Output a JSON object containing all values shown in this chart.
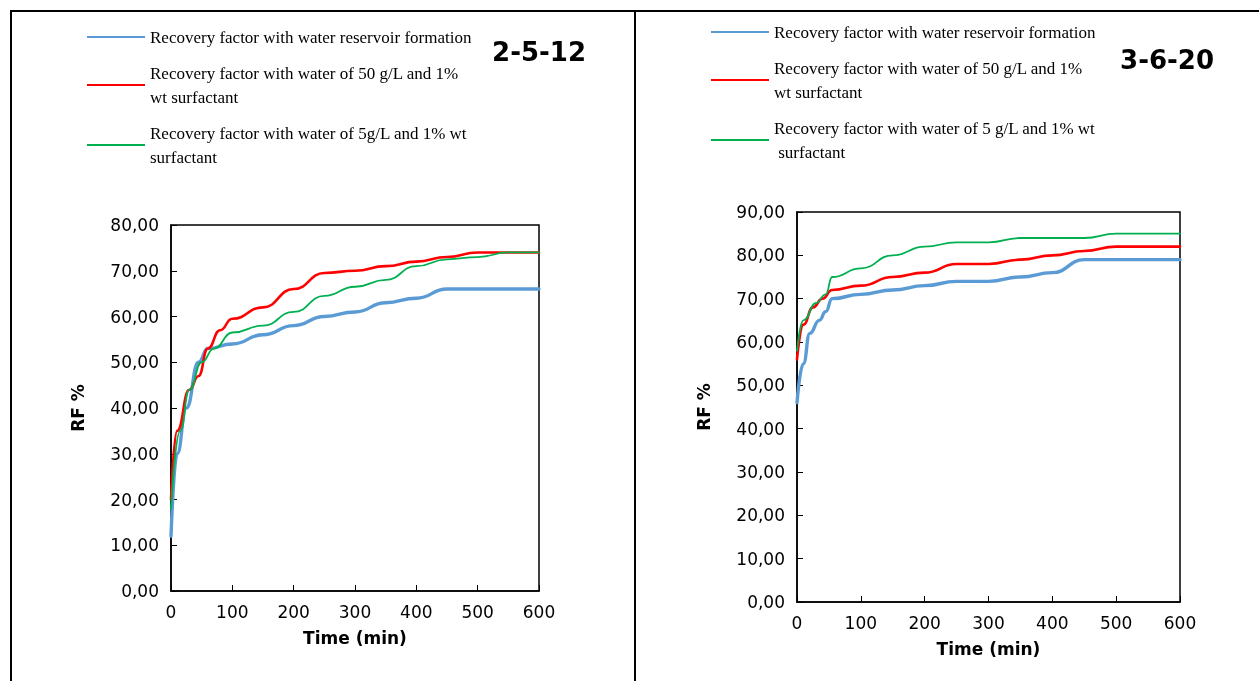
{
  "chart_data": [
    {
      "type": "line",
      "title": "2-5-12",
      "xlabel": "Time (min)",
      "ylabel": "RF %",
      "legend": "top",
      "grid": false,
      "line_style": "solid",
      "marker": "none",
      "xlim": [
        0,
        600
      ],
      "xticks": [
        0,
        100,
        200,
        300,
        400,
        500,
        600
      ],
      "ylim": [
        0,
        80
      ],
      "yticks": [
        {
          "value": 0,
          "label": "0,00"
        },
        {
          "value": 10,
          "label": "10,00"
        },
        {
          "value": 20,
          "label": "20,00"
        },
        {
          "value": 30,
          "label": "30,00"
        },
        {
          "value": 40,
          "label": "40,00"
        },
        {
          "value": 50,
          "label": "50,00"
        },
        {
          "value": 60,
          "label": "60,00"
        },
        {
          "value": 70,
          "label": "70,00"
        },
        {
          "value": 80,
          "label": "80,00"
        }
      ],
      "series": [
        {
          "name": "Recovery factor with water reservoir formation",
          "color": "#5b9bd5",
          "x": [
            0,
            10,
            25,
            45,
            60,
            100,
            150,
            200,
            250,
            300,
            350,
            400,
            450,
            500,
            600
          ],
          "values": [
            12,
            30,
            40,
            50,
            53,
            54,
            56,
            58,
            60,
            61,
            63,
            64,
            66,
            66,
            66
          ]
        },
        {
          "name": "Recovery factor with water of 50 g/L and 1% wt surfactant",
          "color": "#ff0000",
          "x": [
            0,
            10,
            30,
            45,
            60,
            80,
            100,
            150,
            200,
            250,
            300,
            350,
            400,
            450,
            500,
            550,
            600
          ],
          "values": [
            20,
            35,
            44,
            47,
            53,
            57,
            59.5,
            62,
            66,
            69.5,
            70,
            71,
            72,
            73,
            74,
            74,
            74
          ]
        },
        {
          "name": "Recovery factor with water of 5g/L and 1% wt surfactant",
          "color": "#00b050",
          "x": [
            0,
            15,
            30,
            50,
            70,
            100,
            150,
            200,
            250,
            300,
            350,
            400,
            450,
            500,
            550,
            600
          ],
          "values": [
            18,
            35,
            44,
            50,
            53,
            56.5,
            58,
            61,
            64.5,
            66.5,
            68,
            71,
            72.5,
            73,
            74,
            74
          ]
        }
      ]
    },
    {
      "type": "line",
      "title": "3-6-20",
      "xlabel": "Time (min)",
      "ylabel": "RF %",
      "legend": "top",
      "grid": false,
      "line_style": "solid",
      "marker": "none",
      "xlim": [
        0,
        600
      ],
      "xticks": [
        0,
        100,
        200,
        300,
        400,
        500,
        600
      ],
      "ylim": [
        0,
        90
      ],
      "yticks": [
        {
          "value": 0,
          "label": "0,00"
        },
        {
          "value": 10,
          "label": "10,00"
        },
        {
          "value": 20,
          "label": "20,00"
        },
        {
          "value": 30,
          "label": "30,00"
        },
        {
          "value": 40,
          "label": "40,00"
        },
        {
          "value": 50,
          "label": "50,00"
        },
        {
          "value": 60,
          "label": "60,00"
        },
        {
          "value": 70,
          "label": "70,00"
        },
        {
          "value": 80,
          "label": "80,00"
        },
        {
          "value": 90,
          "label": "90,00"
        }
      ],
      "series": [
        {
          "name": "Recovery factor with water reservoir formation",
          "color": "#5b9bd5",
          "x": [
            0,
            10,
            20,
            35,
            45,
            55,
            100,
            150,
            200,
            250,
            300,
            350,
            400,
            450,
            500,
            600
          ],
          "values": [
            46,
            55,
            62,
            65,
            67,
            70,
            71,
            72,
            73,
            74,
            74,
            75,
            76,
            79,
            79,
            79
          ]
        },
        {
          "name": "Recovery factor with water of 50 g/L and 1% wt surfactant",
          "color": "#ff0000",
          "x": [
            0,
            10,
            25,
            40,
            55,
            100,
            150,
            200,
            250,
            300,
            350,
            400,
            450,
            500,
            600
          ],
          "values": [
            56,
            64,
            68,
            70,
            72,
            73,
            75,
            76,
            78,
            78,
            79,
            80,
            81,
            82,
            82
          ]
        },
        {
          "name": "Recovery factor with water of 5 g/L and 1% wt surfactant",
          "color": "#00b050",
          "x": [
            0,
            10,
            30,
            45,
            55,
            100,
            150,
            200,
            250,
            300,
            350,
            400,
            450,
            500,
            600
          ],
          "values": [
            58,
            65,
            69,
            71,
            75,
            77,
            80,
            82,
            83,
            83,
            84,
            84,
            84,
            85,
            85
          ]
        }
      ]
    }
  ]
}
